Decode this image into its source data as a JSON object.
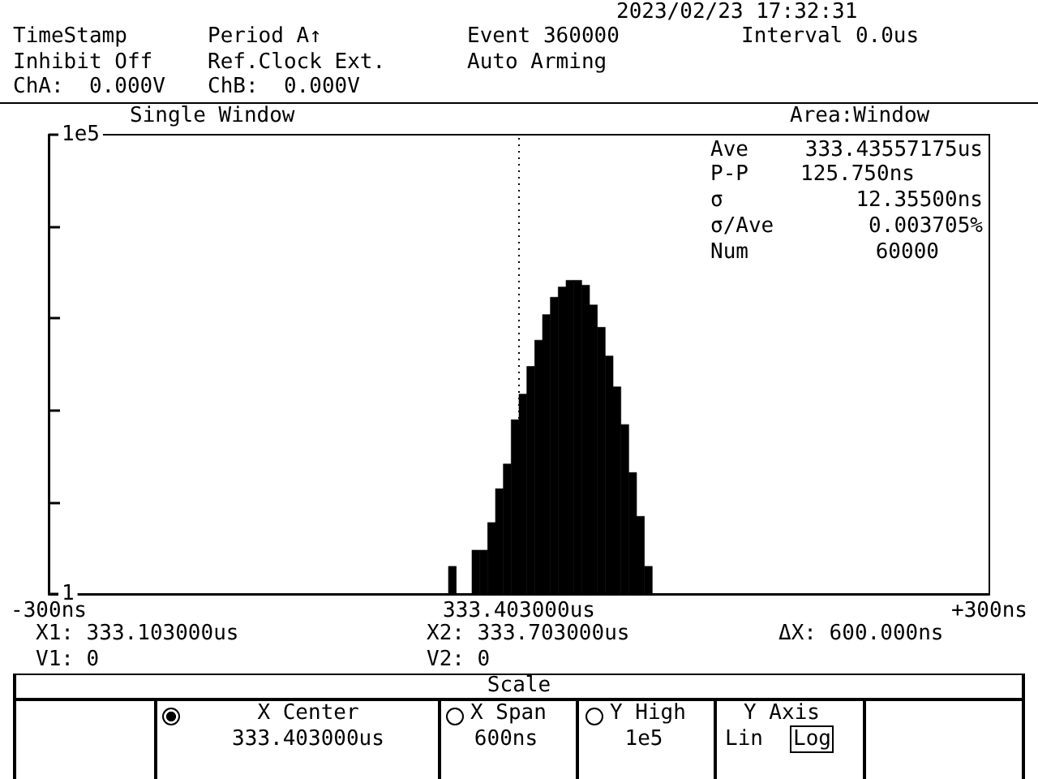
{
  "chart_data": {
    "type": "histogram",
    "bins": [
      -45,
      -40,
      -35,
      -30,
      -25,
      -20,
      -15,
      -10,
      -5,
      0,
      5,
      10,
      15,
      20,
      25,
      30,
      35,
      40,
      45,
      50,
      55,
      60,
      65,
      70,
      75,
      80,
      85
    ],
    "values": [
      2,
      null,
      null,
      3,
      3,
      6,
      14,
      26,
      79,
      150,
      300,
      580,
      1100,
      1700,
      2200,
      2600,
      2600,
      2300,
      1400,
      800,
      390,
      180,
      70,
      21,
      7,
      2
    ],
    "color": "#000000",
    "xlim": [
      -300,
      300
    ],
    "xticks": [
      {
        "value": -300,
        "label": "-300ns"
      },
      {
        "value": 300,
        "label": "+300ns"
      }
    ],
    "ylim": [
      1,
      100000
    ],
    "yticks": [
      {
        "value": 1,
        "label": "1"
      },
      {
        "value": 10,
        "label": null
      },
      {
        "value": 100,
        "label": null
      },
      {
        "value": 1000,
        "label": null
      },
      {
        "value": 10000,
        "label": null
      },
      {
        "value": 100000,
        "label": "1e5"
      }
    ],
    "log": "y",
    "ref_lines": [
      {
        "axis": "x",
        "value": 0,
        "line_style": "dotted",
        "color": "#000000",
        "label": "333.403000us"
      }
    ],
    "annotations": [
      "2023/02/23 17:32:31",
      "TimeStamp",
      "Period A↑",
      "Event 360000",
      "Interval 0.0us",
      "Inhibit Off",
      "Ref.Clock Ext.",
      "Auto Arming",
      "ChA:  0.000V",
      "ChB:  0.000V",
      "Single Window",
      "Area:Window",
      "Ave",
      "333.43557175us",
      "P-P",
      "125.750ns",
      "σ",
      "12.35500ns",
      "σ/Ave",
      "0.003705%",
      "Num",
      "60000",
      "X1: 333.103000us",
      "X2: 333.703000us",
      "ΔX: 600.000ns",
      "V1: 0",
      "V2: 0",
      "Scale",
      "X Center",
      "333.403000us",
      "X Span",
      "600ns",
      "Y High",
      "1e5",
      "Y Axis",
      "Lin",
      "Log"
    ]
  }
}
